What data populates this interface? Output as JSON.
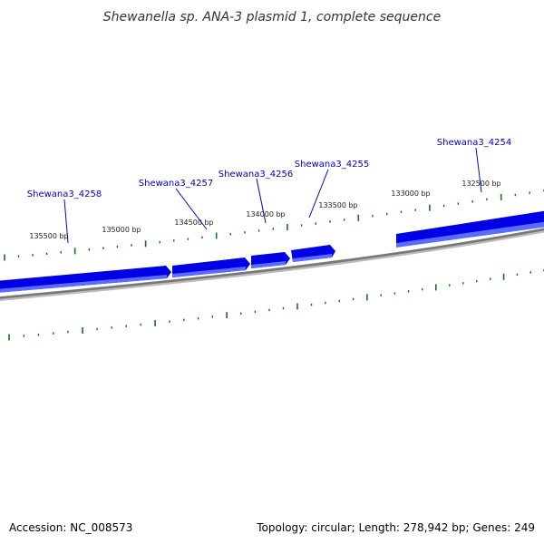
{
  "title": "Shewanella sp. ANA-3 plasmid 1, complete sequence",
  "footer": {
    "accession": "Accession: NC_008573",
    "summary": "Topology: circular; Length: 278,942 bp; Genes: 249"
  },
  "colors": {
    "gene_fill": "#0000e6",
    "gene_highlight": "#5a6cff",
    "backbone": "#777777",
    "tick": "#117711",
    "gene_label": "#0000cc",
    "leader_line": "#0000cc"
  },
  "genes": [
    {
      "label": "Shewana3_4254",
      "strand": "forward"
    },
    {
      "label": "Shewana3_4255",
      "strand": "forward"
    },
    {
      "label": "Shewana3_4256",
      "strand": "forward"
    },
    {
      "label": "Shewana3_4257",
      "strand": "forward"
    },
    {
      "label": "Shewana3_4258",
      "strand": "forward"
    }
  ],
  "position_labels": [
    "132500 bp",
    "133000 bp",
    "133500 bp",
    "134000 bp",
    "134500 bp",
    "135000 bp",
    "135500 bp"
  ]
}
